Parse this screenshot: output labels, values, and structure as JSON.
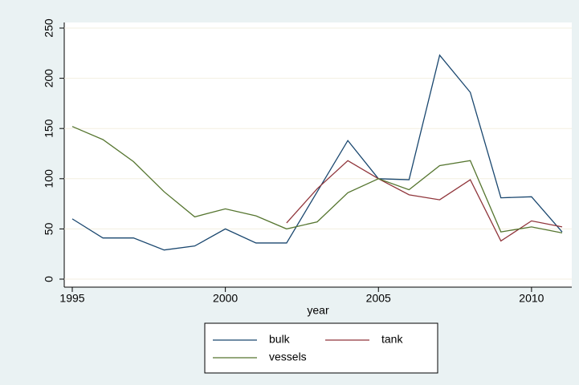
{
  "chart_data": {
    "type": "line",
    "x_label": "year",
    "x": [
      1995,
      1996,
      1997,
      1998,
      1999,
      2000,
      2001,
      2002,
      2003,
      2004,
      2005,
      2006,
      2007,
      2008,
      2009,
      2010,
      2011
    ],
    "series": [
      {
        "name": "bulk",
        "color": "#1a476f",
        "values": [
          60,
          41,
          41,
          29,
          33,
          50,
          36,
          36,
          87,
          138,
          100,
          99,
          223,
          186,
          81,
          82,
          47
        ]
      },
      {
        "name": "tank",
        "color": "#90353b",
        "values": [
          null,
          null,
          null,
          null,
          null,
          null,
          null,
          56,
          90,
          118,
          100,
          84,
          79,
          99,
          38,
          58,
          52
        ]
      },
      {
        "name": "vessels",
        "color": "#55752f",
        "values": [
          152,
          139,
          117,
          87,
          62,
          70,
          63,
          50,
          57,
          86,
          100,
          89,
          113,
          118,
          47,
          52,
          46
        ]
      }
    ],
    "xlim": [
      1995,
      2011
    ],
    "xticks": [
      1995,
      2000,
      2005,
      2010
    ],
    "ylim": [
      0,
      250
    ],
    "yticks": [
      0,
      50,
      100,
      150,
      200,
      250
    ],
    "grid": true
  }
}
